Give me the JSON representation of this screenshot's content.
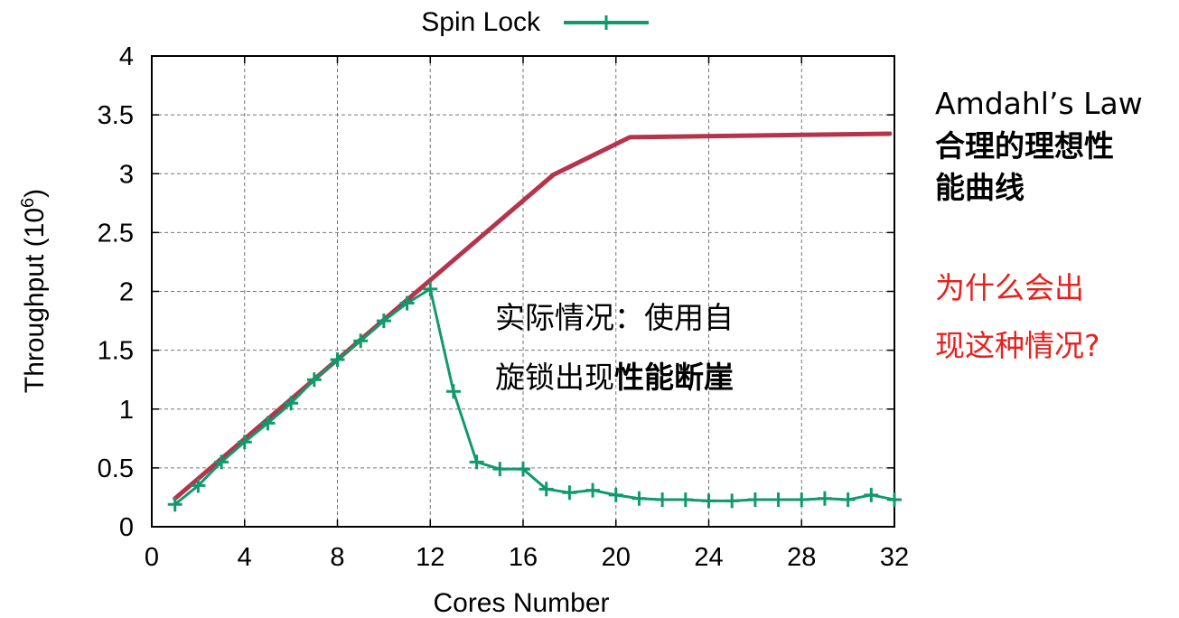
{
  "chart_data": {
    "type": "line",
    "title": "",
    "xlabel": "Cores Number",
    "ylabel_base": "Throughput (10",
    "ylabel_exp": "6",
    "ylabel_close": ")",
    "xlim": [
      0,
      32
    ],
    "ylim": [
      0,
      4
    ],
    "x_ticks": [
      0,
      4,
      8,
      12,
      16,
      20,
      24,
      28,
      32
    ],
    "y_ticks": [
      0,
      0.5,
      1,
      1.5,
      2,
      2.5,
      3,
      3.5,
      4
    ],
    "y_tick_labels": [
      "0",
      "0.5",
      "1",
      "1.5",
      "2",
      "2.5",
      "3",
      "3.5",
      "4"
    ],
    "grid": true,
    "legend_position": "top-center",
    "series": [
      {
        "name": "Spin Lock",
        "color": "#109a6c",
        "marker": "plus",
        "x": [
          1,
          2,
          3,
          4,
          5,
          6,
          7,
          8,
          9,
          10,
          11,
          12,
          13,
          14,
          15,
          16,
          17,
          18,
          19,
          20,
          21,
          22,
          23,
          24,
          25,
          26,
          27,
          28,
          29,
          30,
          31,
          32
        ],
        "y": [
          0.19,
          0.35,
          0.55,
          0.72,
          0.88,
          1.05,
          1.25,
          1.42,
          1.58,
          1.75,
          1.9,
          2.02,
          1.15,
          0.55,
          0.49,
          0.49,
          0.32,
          0.29,
          0.31,
          0.27,
          0.24,
          0.23,
          0.23,
          0.22,
          0.22,
          0.23,
          0.23,
          0.23,
          0.24,
          0.23,
          0.27,
          0.23
        ]
      },
      {
        "name": "",
        "color": "#b5344c",
        "marker": "none",
        "x": [
          1,
          17.3,
          20.6,
          31.8
        ],
        "y": [
          0.24,
          2.99,
          3.31,
          3.34
        ]
      }
    ]
  },
  "annotations": {
    "middle_line1": "实际情况：使用自",
    "middle_line2_normal": "旋锁出现",
    "middle_line2_bold": "性能断崖",
    "right_title": "Amdahl’s Law",
    "right_bold1": "合理的理想性",
    "right_bold2": "能曲线",
    "right_question1": "为什么会出",
    "right_question2": "现这种情况?"
  }
}
